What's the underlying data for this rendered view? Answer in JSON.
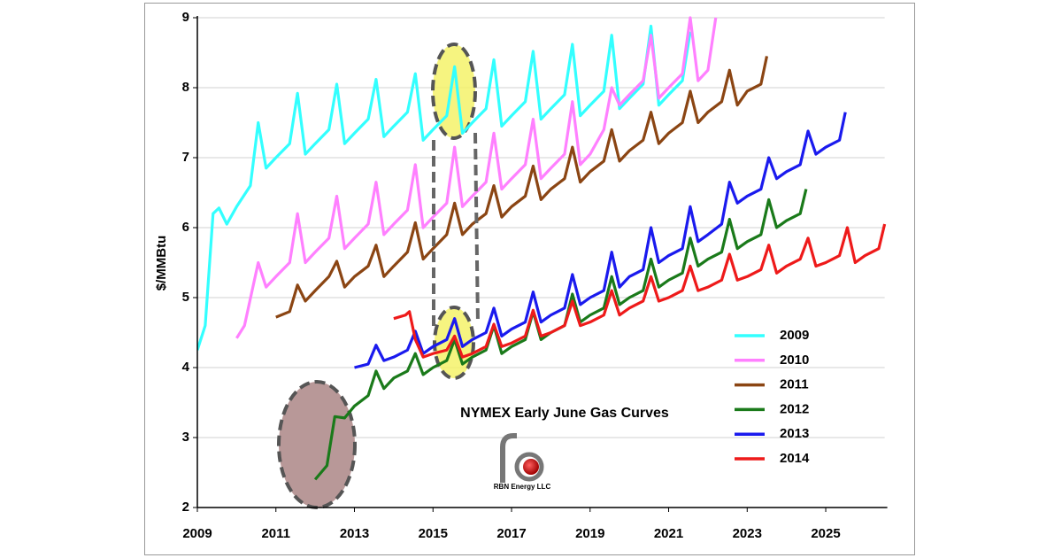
{
  "chart_data": {
    "type": "line",
    "title": "NYMEX Early June Gas Curves",
    "y_label": "$/MMBtu",
    "logo_text": "RBN Energy LLC",
    "xlim": [
      2009,
      2026.5
    ],
    "xticks": [
      2009,
      2011,
      2013,
      2015,
      2017,
      2019,
      2021,
      2023,
      2025
    ],
    "ylim": [
      2,
      9
    ],
    "yticks": [
      2,
      3,
      4,
      5,
      6,
      7,
      8,
      9
    ],
    "grid": true,
    "legend": "lower right",
    "series": [
      {
        "name": "2009",
        "color": "#33ffff",
        "x": [
          2009,
          2009.2,
          2009.4,
          2009.55,
          2009.75,
          2010,
          2010.35,
          2010.55,
          2010.75,
          2011,
          2011.35,
          2011.55,
          2011.75,
          2012,
          2012.35,
          2012.55,
          2012.75,
          2013,
          2013.35,
          2013.55,
          2013.75,
          2014,
          2014.35,
          2014.55,
          2014.75,
          2015,
          2015.35,
          2015.55,
          2015.75,
          2016,
          2016.35,
          2016.55,
          2016.75,
          2017,
          2017.35,
          2017.55,
          2017.75,
          2018,
          2018.35,
          2018.55,
          2018.75,
          2019,
          2019.35,
          2019.55,
          2019.75,
          2020,
          2020.35,
          2020.55,
          2020.75,
          2021,
          2021.35,
          2021.55
        ],
        "values": [
          4.25,
          4.6,
          6.2,
          6.28,
          6.05,
          6.3,
          6.6,
          7.5,
          6.85,
          7.0,
          7.2,
          7.92,
          7.05,
          7.2,
          7.4,
          8.05,
          7.2,
          7.35,
          7.55,
          8.12,
          7.3,
          7.45,
          7.65,
          8.2,
          7.25,
          7.4,
          7.6,
          8.3,
          7.35,
          7.5,
          7.7,
          8.4,
          7.45,
          7.6,
          7.8,
          8.52,
          7.55,
          7.7,
          7.9,
          8.62,
          7.6,
          7.75,
          7.95,
          8.75,
          7.7,
          7.85,
          8.05,
          8.88,
          7.75,
          7.9,
          8.1,
          8.8
        ]
      },
      {
        "name": "2010",
        "color": "#ff80ff",
        "x": [
          2010,
          2010.2,
          2010.55,
          2010.75,
          2011,
          2011.35,
          2011.55,
          2011.75,
          2012,
          2012.35,
          2012.55,
          2012.75,
          2013,
          2013.35,
          2013.55,
          2013.75,
          2014,
          2014.35,
          2014.55,
          2014.75,
          2015,
          2015.35,
          2015.55,
          2015.75,
          2016,
          2016.35,
          2016.55,
          2016.75,
          2017,
          2017.35,
          2017.55,
          2017.75,
          2018,
          2018.35,
          2018.55,
          2018.75,
          2019,
          2019.35,
          2019.55,
          2019.75,
          2020,
          2020.35,
          2020.55,
          2020.75,
          2021,
          2021.35,
          2021.55,
          2021.75,
          2022,
          2022.2
        ],
        "values": [
          4.42,
          4.6,
          5.5,
          5.15,
          5.3,
          5.5,
          6.2,
          5.5,
          5.65,
          5.85,
          6.45,
          5.7,
          5.85,
          6.05,
          6.65,
          5.9,
          6.05,
          6.25,
          6.9,
          6.0,
          6.15,
          6.35,
          7.15,
          6.3,
          6.45,
          6.65,
          7.35,
          6.55,
          6.7,
          6.9,
          7.55,
          6.7,
          6.85,
          7.05,
          7.8,
          6.9,
          7.05,
          7.4,
          8.0,
          7.75,
          7.9,
          8.1,
          8.75,
          7.85,
          8.0,
          8.2,
          9.0,
          8.1,
          8.25,
          9.0
        ]
      },
      {
        "name": "2011",
        "color": "#8b4513",
        "x": [
          2011,
          2011.35,
          2011.55,
          2011.75,
          2012,
          2012.35,
          2012.55,
          2012.75,
          2013,
          2013.35,
          2013.55,
          2013.75,
          2014,
          2014.35,
          2014.55,
          2014.75,
          2015,
          2015.35,
          2015.55,
          2015.75,
          2016,
          2016.35,
          2016.55,
          2016.75,
          2017,
          2017.35,
          2017.55,
          2017.75,
          2018,
          2018.35,
          2018.55,
          2018.75,
          2019,
          2019.35,
          2019.55,
          2019.75,
          2020,
          2020.35,
          2020.55,
          2020.75,
          2021,
          2021.35,
          2021.55,
          2021.75,
          2022,
          2022.35,
          2022.55,
          2022.75,
          2023,
          2023.35,
          2023.5
        ],
        "values": [
          4.72,
          4.8,
          5.18,
          4.95,
          5.1,
          5.3,
          5.52,
          5.15,
          5.3,
          5.45,
          5.75,
          5.3,
          5.45,
          5.65,
          6.07,
          5.55,
          5.7,
          5.9,
          6.35,
          5.9,
          6.05,
          6.2,
          6.6,
          6.15,
          6.3,
          6.45,
          6.88,
          6.4,
          6.55,
          6.7,
          7.15,
          6.65,
          6.8,
          6.95,
          7.4,
          6.95,
          7.1,
          7.25,
          7.65,
          7.2,
          7.35,
          7.5,
          7.95,
          7.5,
          7.65,
          7.8,
          8.25,
          7.75,
          7.95,
          8.05,
          8.45
        ]
      },
      {
        "name": "2012",
        "color": "#1a7a1a",
        "x": [
          2012,
          2012.3,
          2012.5,
          2012.75,
          2013,
          2013.35,
          2013.55,
          2013.75,
          2014,
          2014.35,
          2014.55,
          2014.75,
          2015,
          2015.35,
          2015.55,
          2015.75,
          2016,
          2016.35,
          2016.55,
          2016.75,
          2017,
          2017.35,
          2017.55,
          2017.75,
          2018,
          2018.35,
          2018.55,
          2018.75,
          2019,
          2019.35,
          2019.55,
          2019.75,
          2020,
          2020.35,
          2020.55,
          2020.75,
          2021,
          2021.35,
          2021.55,
          2021.75,
          2022,
          2022.35,
          2022.55,
          2022.75,
          2023,
          2023.35,
          2023.55,
          2023.75,
          2024,
          2024.35,
          2024.5
        ],
        "values": [
          2.4,
          2.6,
          3.3,
          3.28,
          3.45,
          3.6,
          3.95,
          3.7,
          3.85,
          3.95,
          4.2,
          3.9,
          4.0,
          4.1,
          4.4,
          4.05,
          4.15,
          4.25,
          4.6,
          4.2,
          4.3,
          4.4,
          4.8,
          4.4,
          4.5,
          4.6,
          5.05,
          4.65,
          4.75,
          4.85,
          5.3,
          4.9,
          5.0,
          5.1,
          5.55,
          5.15,
          5.25,
          5.35,
          5.85,
          5.45,
          5.55,
          5.65,
          6.12,
          5.7,
          5.8,
          5.9,
          6.4,
          6.0,
          6.1,
          6.2,
          6.55
        ]
      },
      {
        "name": "2013",
        "color": "#1a1aee",
        "x": [
          2013,
          2013.35,
          2013.55,
          2013.75,
          2014,
          2014.35,
          2014.55,
          2014.75,
          2015,
          2015.35,
          2015.55,
          2015.75,
          2016,
          2016.35,
          2016.55,
          2016.75,
          2017,
          2017.35,
          2017.55,
          2017.75,
          2018,
          2018.35,
          2018.55,
          2018.75,
          2019,
          2019.35,
          2019.55,
          2019.75,
          2020,
          2020.35,
          2020.55,
          2020.75,
          2021,
          2021.35,
          2021.55,
          2021.75,
          2022,
          2022.35,
          2022.55,
          2022.75,
          2023,
          2023.35,
          2023.55,
          2023.75,
          2024,
          2024.35,
          2024.55,
          2024.75,
          2025,
          2025.35,
          2025.5
        ],
        "values": [
          4.0,
          4.05,
          4.32,
          4.1,
          4.15,
          4.25,
          4.52,
          4.2,
          4.3,
          4.4,
          4.7,
          4.3,
          4.4,
          4.5,
          4.85,
          4.45,
          4.55,
          4.65,
          5.08,
          4.65,
          4.75,
          4.85,
          5.33,
          4.9,
          5.0,
          5.1,
          5.65,
          5.15,
          5.3,
          5.4,
          6.0,
          5.5,
          5.6,
          5.7,
          6.3,
          5.8,
          5.9,
          6.05,
          6.65,
          6.35,
          6.45,
          6.55,
          7.0,
          6.7,
          6.8,
          6.9,
          7.38,
          7.05,
          7.15,
          7.25,
          7.65
        ]
      },
      {
        "name": "2014",
        "color": "#ee1a1a",
        "x": [
          2014,
          2014.3,
          2014.4,
          2014.55,
          2014.75,
          2015,
          2015.35,
          2015.55,
          2015.75,
          2016,
          2016.35,
          2016.55,
          2016.75,
          2017,
          2017.35,
          2017.55,
          2017.75,
          2018,
          2018.35,
          2018.55,
          2018.75,
          2019,
          2019.35,
          2019.55,
          2019.75,
          2020,
          2020.35,
          2020.55,
          2020.75,
          2021,
          2021.35,
          2021.55,
          2021.75,
          2022,
          2022.35,
          2022.55,
          2022.75,
          2023,
          2023.35,
          2023.55,
          2023.75,
          2024,
          2024.35,
          2024.55,
          2024.75,
          2025,
          2025.35,
          2025.55,
          2025.75,
          2026,
          2026.35,
          2026.5
        ],
        "values": [
          4.7,
          4.75,
          4.8,
          4.4,
          4.15,
          4.2,
          4.25,
          4.45,
          4.15,
          4.2,
          4.3,
          4.62,
          4.3,
          4.35,
          4.45,
          4.82,
          4.45,
          4.5,
          4.6,
          4.95,
          4.6,
          4.65,
          4.75,
          5.1,
          4.75,
          4.85,
          4.95,
          5.3,
          4.95,
          5.0,
          5.1,
          5.45,
          5.1,
          5.15,
          5.25,
          5.62,
          5.25,
          5.3,
          5.4,
          5.75,
          5.35,
          5.45,
          5.55,
          5.85,
          5.45,
          5.5,
          5.6,
          6.0,
          5.5,
          5.6,
          5.7,
          6.05
        ]
      }
    ]
  }
}
